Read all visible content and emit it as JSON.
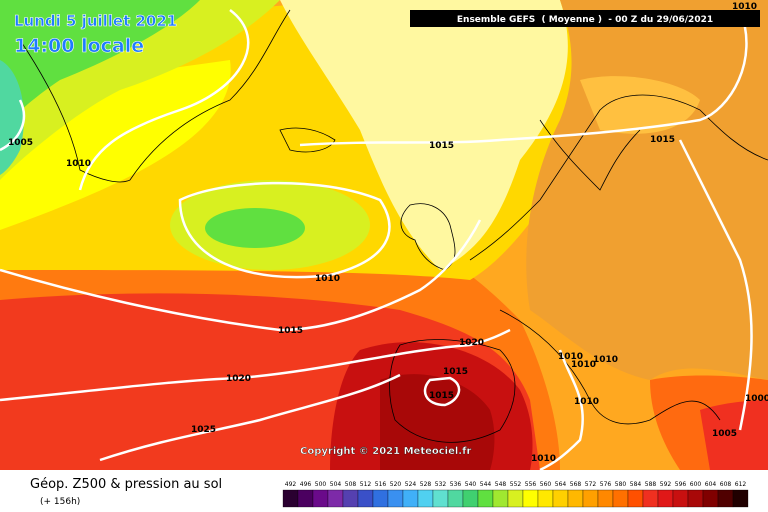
{
  "header": {
    "title": "Lundi 5 juillet 2021",
    "time": "14:00 locale",
    "model": "Ensemble GEFS  ( Moyenne )  - 00 Z du 29/06/2021"
  },
  "isobar_labels": [
    "1010",
    "1005",
    "1010",
    "1015",
    "1015",
    "1010",
    "1015",
    "1020",
    "1010",
    "1010",
    "1010",
    "1015",
    "1020",
    "1015",
    "1010",
    "1000",
    "1025",
    "1005",
    "1010"
  ],
  "copyright": "Copyright © 2021 Meteociel.fr",
  "legend": {
    "title": "Géop. Z500 & pression au sol",
    "lead": "(+ 156h)",
    "scale_labels": [
      492,
      496,
      500,
      504,
      508,
      512,
      516,
      520,
      524,
      528,
      532,
      536,
      540,
      544,
      548,
      552,
      556,
      560,
      564,
      568,
      572,
      576,
      580,
      584,
      588,
      592,
      596,
      600,
      604,
      608,
      612
    ],
    "scale_colors": [
      "#2a0030",
      "#4b0060",
      "#6a0a8a",
      "#7d2aa8",
      "#5540b0",
      "#3a50c8",
      "#3070e0",
      "#3a90f0",
      "#40b0f8",
      "#50d0f0",
      "#60e0d0",
      "#50d8a0",
      "#40d070",
      "#60e040",
      "#a0e830",
      "#d8f020",
      "#ffff00",
      "#ffe800",
      "#ffd000",
      "#ffb800",
      "#ffa000",
      "#ff8800",
      "#ff7000",
      "#ff5000",
      "#f03020",
      "#e01818",
      "#c81010",
      "#a80808",
      "#800000",
      "#500000",
      "#200000"
    ]
  }
}
